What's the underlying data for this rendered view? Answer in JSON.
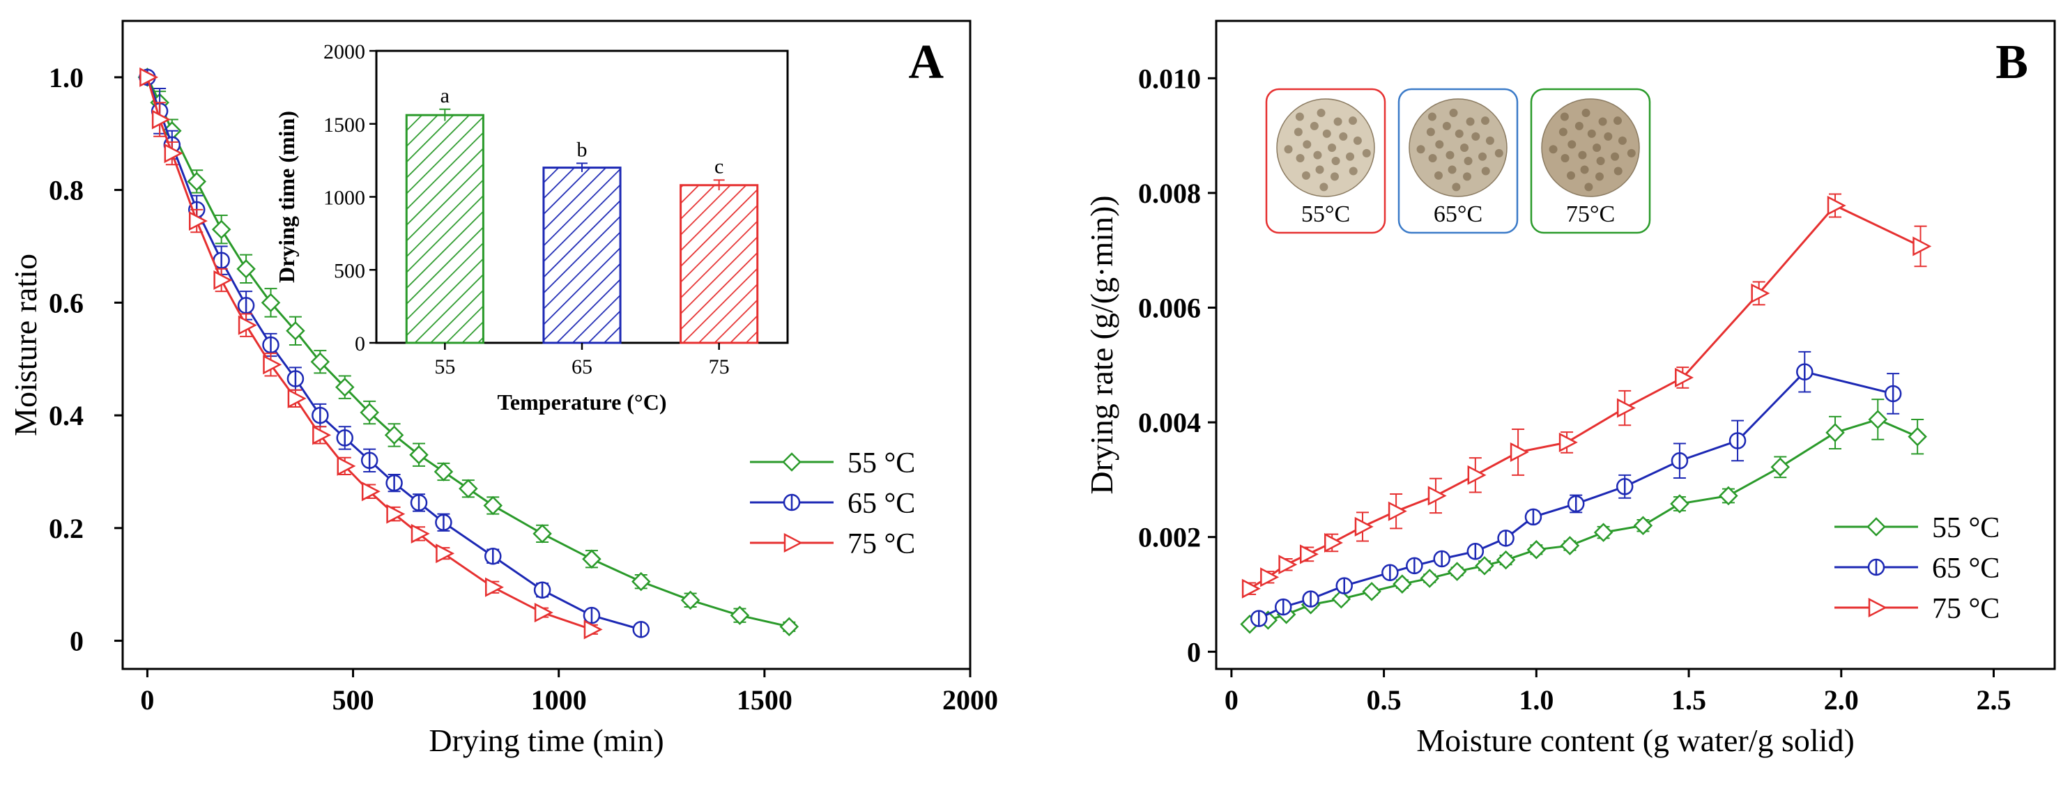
{
  "colors": {
    "c55": "#2a9a2a",
    "c65": "#1c28b4",
    "c75": "#e63030"
  },
  "chart_data": [
    {
      "id": "A",
      "type": "line",
      "panel_label": "A",
      "xlabel": "Drying time (min)",
      "ylabel": "Moisture ratio",
      "xlim": [
        -60,
        2000
      ],
      "ylim": [
        -0.05,
        1.1
      ],
      "xticks": [
        0,
        500,
        1000,
        1500,
        2000
      ],
      "xtick_labels": [
        "0",
        "500",
        "1000",
        "1500",
        "2000"
      ],
      "yticks": [
        0,
        0.2,
        0.4,
        0.6,
        0.8,
        1.0
      ],
      "ytick_labels": [
        "0",
        "0.2",
        "0.4",
        "0.6",
        "0.8",
        "1.0"
      ],
      "legend": {
        "position": "right",
        "entries": [
          "55 °C",
          "65 °C",
          "75 °C"
        ]
      },
      "series": [
        {
          "name": "55 °C",
          "marker": "diamond",
          "color": "#2a9a2a",
          "x": [
            0,
            30,
            60,
            120,
            180,
            240,
            300,
            360,
            420,
            480,
            540,
            600,
            660,
            720,
            780,
            840,
            960,
            1080,
            1200,
            1320,
            1440,
            1560
          ],
          "y": [
            1.0,
            0.955,
            0.905,
            0.815,
            0.73,
            0.66,
            0.6,
            0.55,
            0.495,
            0.45,
            0.405,
            0.365,
            0.33,
            0.3,
            0.27,
            0.24,
            0.19,
            0.145,
            0.105,
            0.072,
            0.045,
            0.025
          ],
          "err": [
            0.0,
            0.02,
            0.02,
            0.02,
            0.025,
            0.025,
            0.025,
            0.025,
            0.02,
            0.02,
            0.02,
            0.02,
            0.02,
            0.015,
            0.015,
            0.015,
            0.015,
            0.015,
            0.012,
            0.012,
            0.012,
            0.008
          ]
        },
        {
          "name": "65 °C",
          "marker": "circle",
          "color": "#1c28b4",
          "x": [
            0,
            30,
            60,
            120,
            180,
            240,
            300,
            360,
            420,
            480,
            540,
            600,
            660,
            720,
            840,
            960,
            1080,
            1200
          ],
          "y": [
            1.0,
            0.94,
            0.88,
            0.765,
            0.675,
            0.595,
            0.525,
            0.465,
            0.4,
            0.36,
            0.32,
            0.28,
            0.245,
            0.21,
            0.15,
            0.09,
            0.045,
            0.02
          ],
          "err": [
            0.0,
            0.04,
            0.025,
            0.025,
            0.025,
            0.025,
            0.02,
            0.02,
            0.02,
            0.02,
            0.02,
            0.015,
            0.015,
            0.015,
            0.012,
            0.012,
            0.008,
            0.008
          ]
        },
        {
          "name": "75 °C",
          "marker": "triangle-right",
          "color": "#e63030",
          "x": [
            0,
            30,
            60,
            120,
            180,
            240,
            300,
            360,
            420,
            480,
            540,
            600,
            660,
            720,
            840,
            960,
            1080
          ],
          "y": [
            1.0,
            0.925,
            0.865,
            0.745,
            0.64,
            0.56,
            0.49,
            0.43,
            0.365,
            0.31,
            0.265,
            0.225,
            0.19,
            0.155,
            0.095,
            0.05,
            0.02
          ],
          "err": [
            0.0,
            0.03,
            0.02,
            0.02,
            0.02,
            0.02,
            0.02,
            0.015,
            0.015,
            0.015,
            0.012,
            0.012,
            0.012,
            0.01,
            0.01,
            0.008,
            0.008
          ]
        }
      ]
    },
    {
      "id": "A-inset",
      "type": "bar",
      "xlabel": "Temperature (°C)",
      "ylabel": "Drying time (min)",
      "ylim": [
        0,
        2000
      ],
      "yticks": [
        0,
        500,
        1000,
        1500,
        2000
      ],
      "ytick_labels": [
        "0",
        "500",
        "1000",
        "1500",
        "2000"
      ],
      "categories": [
        "55",
        "65",
        "75"
      ],
      "values": [
        1560,
        1200,
        1080
      ],
      "errors": [
        40,
        30,
        35
      ],
      "significance": [
        "a",
        "b",
        "c"
      ],
      "colors": [
        "#2a9a2a",
        "#1c28b4",
        "#e63030"
      ]
    },
    {
      "id": "B",
      "type": "line",
      "panel_label": "B",
      "xlabel": "Moisture content (g water/g solid)",
      "ylabel": "Drying rate (g/(g·min))",
      "xlim": [
        -0.05,
        2.7
      ],
      "ylim": [
        -0.0003,
        0.011
      ],
      "xticks": [
        0,
        0.5,
        1.0,
        1.5,
        2.0,
        2.5
      ],
      "xtick_labels": [
        "0",
        "0.5",
        "1.0",
        "1.5",
        "2.0",
        "2.5"
      ],
      "yticks": [
        0,
        0.002,
        0.004,
        0.006,
        0.008,
        0.01
      ],
      "ytick_labels": [
        "0",
        "0.002",
        "0.004",
        "0.006",
        "0.008",
        "0.010"
      ],
      "legend": {
        "position": "bottom-right",
        "entries": [
          "55 °C",
          "65 °C",
          "75 °C"
        ]
      },
      "series": [
        {
          "name": "55 °C",
          "marker": "diamond",
          "color": "#2a9a2a",
          "x": [
            0.06,
            0.12,
            0.18,
            0.26,
            0.36,
            0.46,
            0.56,
            0.65,
            0.74,
            0.83,
            0.9,
            1.0,
            1.11,
            1.22,
            1.35,
            1.47,
            1.63,
            1.8,
            1.98,
            2.12,
            2.25
          ],
          "y": [
            0.00048,
            0.00055,
            0.00065,
            0.00082,
            0.00092,
            0.00105,
            0.00118,
            0.00128,
            0.0014,
            0.0015,
            0.0016,
            0.00178,
            0.00185,
            0.00208,
            0.0022,
            0.00258,
            0.00272,
            0.00322,
            0.00382,
            0.00405,
            0.00375
          ],
          "err": [
            5e-05,
            5e-05,
            5e-05,
            6e-05,
            6e-05,
            6e-05,
            7e-05,
            7e-05,
            7e-05,
            8e-05,
            8e-05,
            8e-05,
            8e-05,
            0.0001,
            0.0001,
            0.00012,
            0.00012,
            0.00018,
            0.00028,
            0.00035,
            0.0003
          ]
        },
        {
          "name": "65 °C",
          "marker": "circle",
          "color": "#1c28b4",
          "x": [
            0.09,
            0.17,
            0.26,
            0.37,
            0.52,
            0.6,
            0.69,
            0.8,
            0.9,
            0.99,
            1.13,
            1.29,
            1.47,
            1.66,
            1.88,
            2.17
          ],
          "y": [
            0.00058,
            0.00078,
            0.00092,
            0.00115,
            0.00138,
            0.0015,
            0.00162,
            0.00175,
            0.00198,
            0.00235,
            0.00258,
            0.00288,
            0.00333,
            0.00368,
            0.00488,
            0.0045
          ],
          "err": [
            5e-05,
            6e-05,
            6e-05,
            7e-05,
            8e-05,
            8e-05,
            8e-05,
            9e-05,
            0.0001,
            0.0001,
            0.00015,
            0.0002,
            0.0003,
            0.00035,
            0.00035,
            0.00035
          ]
        },
        {
          "name": "75 °C",
          "marker": "triangle-right",
          "color": "#e63030",
          "x": [
            0.06,
            0.12,
            0.18,
            0.25,
            0.33,
            0.43,
            0.54,
            0.67,
            0.8,
            0.94,
            1.1,
            1.29,
            1.48,
            1.73,
            1.98,
            2.26
          ],
          "y": [
            0.0011,
            0.0013,
            0.00152,
            0.0017,
            0.0019,
            0.00218,
            0.00245,
            0.00272,
            0.00308,
            0.00348,
            0.00365,
            0.00425,
            0.00478,
            0.00625,
            0.00778,
            0.00707
          ],
          "err": [
            0.0001,
            0.0001,
            0.0001,
            0.00012,
            0.00015,
            0.00025,
            0.0003,
            0.0003,
            0.0003,
            0.0004,
            0.00018,
            0.0003,
            0.00018,
            0.0002,
            0.0002,
            0.00035
          ]
        }
      ]
    }
  ],
  "photos": [
    {
      "caption": "55°C",
      "frame_color": "#e63030",
      "tone": "#d8cdb8"
    },
    {
      "caption": "65°C",
      "frame_color": "#3a7ac8",
      "tone": "#c6b9a2"
    },
    {
      "caption": "75°C",
      "frame_color": "#2a9a2a",
      "tone": "#b9a78c"
    }
  ]
}
